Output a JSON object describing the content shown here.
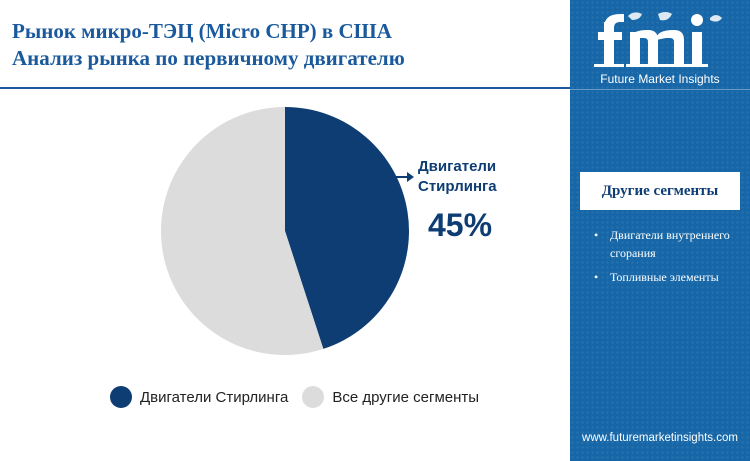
{
  "title": {
    "line1": "Рынок микро-ТЭЦ (Micro CHP) в США",
    "line2": "Анализ рынка по первичному двигателю"
  },
  "callout": {
    "label": "Двигатели Стирлинга",
    "value": "45%"
  },
  "legend": [
    {
      "label": "Двигатели Стирлинга",
      "color": "#0e3d73"
    },
    {
      "label": "Все другие сегменты",
      "color": "#dcdcdc"
    }
  ],
  "chart_data": {
    "type": "pie",
    "title": "Рынок микро-ТЭЦ (Micro CHP) в США Анализ рынка по первичному двигателю",
    "slices": [
      {
        "label": "Двигатели Стирлинга",
        "value": 45,
        "color": "#0e3d73"
      },
      {
        "label": "Все другие сегменты",
        "value": 55,
        "color": "#dcdcdc"
      }
    ],
    "start_angle_deg": 0,
    "direction": "clockwise",
    "legend_position": "bottom"
  },
  "sidebar": {
    "logo_text": "fmi",
    "logo_subtitle": "Future Market Insights",
    "other_heading": "Другие сегменты",
    "other_items": [
      "Двигатели внутреннего сгорания",
      "Топливные элементы"
    ],
    "website": "www.futuremarketinsights.com",
    "background_color": "#1767a8"
  }
}
